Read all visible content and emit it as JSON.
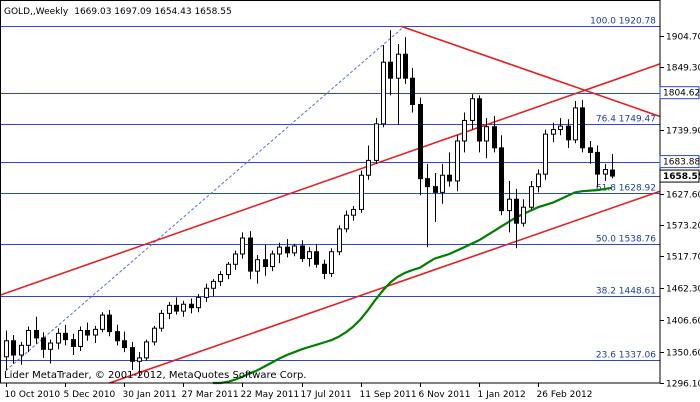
{
  "chart_data": {
    "type": "candlestick",
    "symbol": "GOLD,,Weekly",
    "ohlc_readout": "1669.03 1697.09 1654.43 1658.55",
    "footer": "Lider MetaTrader, © 2001-2012, MetaQuotes Software Corp.",
    "ylim": [
      1296,
      1960
    ],
    "y_ticks": [
      "1904.70",
      "1849.30",
      "1739.90",
      "1627.60",
      "1573.20",
      "1517.70",
      "1462.30",
      "1406.60",
      "1350.60",
      "1296.10"
    ],
    "x_ticks": [
      "10 Oct 2010",
      "5 Dec 2010",
      "30 Jan 2011",
      "27 Mar 2011",
      "22 May 2011",
      "17 Jul 2011",
      "11 Sep 2011",
      "6 Nov 2011",
      "1 Jan 2012",
      "26 Feb 2012"
    ],
    "price_boxes": [
      {
        "label": "1804.62",
        "value": 1804.62
      },
      {
        "label": "1683.88",
        "value": 1683.88
      },
      {
        "label": "1658.55",
        "value": 1658.55
      }
    ],
    "fib_levels": [
      {
        "label": "100.0 1920.78",
        "value": 1920.78
      },
      {
        "label": "76.4 1749.47",
        "value": 1749.47
      },
      {
        "label": "61.8 1628.92",
        "value": 1628.92
      },
      {
        "label": "50.0 1538.76",
        "value": 1538.76
      },
      {
        "label": "38.2 1448.61",
        "value": 1448.61
      },
      {
        "label": "23.6 1337.06",
        "value": 1337.06
      }
    ],
    "candles": [
      {
        "o": 1342,
        "h": 1388,
        "l": 1318,
        "c": 1370
      },
      {
        "o": 1370,
        "h": 1380,
        "l": 1330,
        "c": 1345
      },
      {
        "o": 1345,
        "h": 1368,
        "l": 1328,
        "c": 1362
      },
      {
        "o": 1362,
        "h": 1395,
        "l": 1350,
        "c": 1388
      },
      {
        "o": 1388,
        "h": 1412,
        "l": 1365,
        "c": 1375
      },
      {
        "o": 1375,
        "h": 1385,
        "l": 1340,
        "c": 1355
      },
      {
        "o": 1355,
        "h": 1372,
        "l": 1330,
        "c": 1366
      },
      {
        "o": 1366,
        "h": 1392,
        "l": 1355,
        "c": 1383
      },
      {
        "o": 1383,
        "h": 1398,
        "l": 1362,
        "c": 1372
      },
      {
        "o": 1372,
        "h": 1382,
        "l": 1345,
        "c": 1360
      },
      {
        "o": 1360,
        "h": 1395,
        "l": 1352,
        "c": 1388
      },
      {
        "o": 1388,
        "h": 1402,
        "l": 1370,
        "c": 1380
      },
      {
        "o": 1380,
        "h": 1396,
        "l": 1366,
        "c": 1390
      },
      {
        "o": 1390,
        "h": 1420,
        "l": 1385,
        "c": 1415
      },
      {
        "o": 1415,
        "h": 1424,
        "l": 1378,
        "c": 1386
      },
      {
        "o": 1386,
        "h": 1398,
        "l": 1362,
        "c": 1370
      },
      {
        "o": 1370,
        "h": 1386,
        "l": 1350,
        "c": 1358
      },
      {
        "o": 1358,
        "h": 1368,
        "l": 1319,
        "c": 1334
      },
      {
        "o": 1334,
        "h": 1350,
        "l": 1308,
        "c": 1340
      },
      {
        "o": 1340,
        "h": 1372,
        "l": 1335,
        "c": 1368
      },
      {
        "o": 1368,
        "h": 1396,
        "l": 1362,
        "c": 1392
      },
      {
        "o": 1392,
        "h": 1424,
        "l": 1386,
        "c": 1418
      },
      {
        "o": 1418,
        "h": 1438,
        "l": 1408,
        "c": 1432
      },
      {
        "o": 1432,
        "h": 1446,
        "l": 1416,
        "c": 1422
      },
      {
        "o": 1422,
        "h": 1440,
        "l": 1412,
        "c": 1434
      },
      {
        "o": 1434,
        "h": 1444,
        "l": 1418,
        "c": 1428
      },
      {
        "o": 1428,
        "h": 1452,
        "l": 1420,
        "c": 1446
      },
      {
        "o": 1446,
        "h": 1470,
        "l": 1438,
        "c": 1462
      },
      {
        "o": 1462,
        "h": 1478,
        "l": 1448,
        "c": 1474
      },
      {
        "o": 1474,
        "h": 1492,
        "l": 1466,
        "c": 1486
      },
      {
        "o": 1486,
        "h": 1508,
        "l": 1478,
        "c": 1504
      },
      {
        "o": 1504,
        "h": 1528,
        "l": 1494,
        "c": 1522
      },
      {
        "o": 1522,
        "h": 1560,
        "l": 1514,
        "c": 1550
      },
      {
        "o": 1550,
        "h": 1562,
        "l": 1478,
        "c": 1492
      },
      {
        "o": 1492,
        "h": 1520,
        "l": 1470,
        "c": 1512
      },
      {
        "o": 1512,
        "h": 1538,
        "l": 1484,
        "c": 1500
      },
      {
        "o": 1500,
        "h": 1528,
        "l": 1492,
        "c": 1522
      },
      {
        "o": 1522,
        "h": 1542,
        "l": 1506,
        "c": 1534
      },
      {
        "o": 1534,
        "h": 1548,
        "l": 1516,
        "c": 1524
      },
      {
        "o": 1524,
        "h": 1540,
        "l": 1518,
        "c": 1536
      },
      {
        "o": 1536,
        "h": 1546,
        "l": 1508,
        "c": 1514
      },
      {
        "o": 1514,
        "h": 1534,
        "l": 1500,
        "c": 1526
      },
      {
        "o": 1526,
        "h": 1540,
        "l": 1498,
        "c": 1504
      },
      {
        "o": 1504,
        "h": 1512,
        "l": 1478,
        "c": 1488
      },
      {
        "o": 1488,
        "h": 1532,
        "l": 1482,
        "c": 1526
      },
      {
        "o": 1526,
        "h": 1572,
        "l": 1520,
        "c": 1566
      },
      {
        "o": 1566,
        "h": 1598,
        "l": 1560,
        "c": 1590
      },
      {
        "o": 1590,
        "h": 1606,
        "l": 1580,
        "c": 1600
      },
      {
        "o": 1600,
        "h": 1668,
        "l": 1594,
        "c": 1660
      },
      {
        "o": 1660,
        "h": 1712,
        "l": 1652,
        "c": 1686
      },
      {
        "o": 1686,
        "h": 1760,
        "l": 1680,
        "c": 1750
      },
      {
        "o": 1750,
        "h": 1888,
        "l": 1744,
        "c": 1858
      },
      {
        "o": 1858,
        "h": 1914,
        "l": 1800,
        "c": 1830
      },
      {
        "o": 1830,
        "h": 1890,
        "l": 1748,
        "c": 1872
      },
      {
        "o": 1872,
        "h": 1902,
        "l": 1820,
        "c": 1830
      },
      {
        "o": 1830,
        "h": 1848,
        "l": 1770,
        "c": 1784
      },
      {
        "o": 1784,
        "h": 1796,
        "l": 1625,
        "c": 1654
      },
      {
        "o": 1654,
        "h": 1680,
        "l": 1534,
        "c": 1640
      },
      {
        "o": 1640,
        "h": 1664,
        "l": 1578,
        "c": 1630
      },
      {
        "o": 1630,
        "h": 1680,
        "l": 1610,
        "c": 1660
      },
      {
        "o": 1660,
        "h": 1700,
        "l": 1640,
        "c": 1650
      },
      {
        "o": 1650,
        "h": 1730,
        "l": 1632,
        "c": 1720
      },
      {
        "o": 1720,
        "h": 1770,
        "l": 1700,
        "c": 1756
      },
      {
        "o": 1756,
        "h": 1802,
        "l": 1740,
        "c": 1794
      },
      {
        "o": 1794,
        "h": 1800,
        "l": 1700,
        "c": 1720
      },
      {
        "o": 1720,
        "h": 1760,
        "l": 1690,
        "c": 1745
      },
      {
        "o": 1745,
        "h": 1764,
        "l": 1700,
        "c": 1708
      },
      {
        "o": 1708,
        "h": 1730,
        "l": 1590,
        "c": 1598
      },
      {
        "o": 1598,
        "h": 1650,
        "l": 1560,
        "c": 1618
      },
      {
        "o": 1618,
        "h": 1636,
        "l": 1532,
        "c": 1576
      },
      {
        "o": 1576,
        "h": 1618,
        "l": 1570,
        "c": 1604
      },
      {
        "o": 1604,
        "h": 1650,
        "l": 1600,
        "c": 1640
      },
      {
        "o": 1640,
        "h": 1670,
        "l": 1630,
        "c": 1662
      },
      {
        "o": 1662,
        "h": 1740,
        "l": 1652,
        "c": 1732
      },
      {
        "o": 1732,
        "h": 1752,
        "l": 1718,
        "c": 1740
      },
      {
        "o": 1740,
        "h": 1760,
        "l": 1730,
        "c": 1746
      },
      {
        "o": 1746,
        "h": 1758,
        "l": 1708,
        "c": 1722
      },
      {
        "o": 1722,
        "h": 1790,
        "l": 1716,
        "c": 1778
      },
      {
        "o": 1778,
        "h": 1792,
        "l": 1700,
        "c": 1708
      },
      {
        "o": 1708,
        "h": 1720,
        "l": 1680,
        "c": 1700
      },
      {
        "o": 1700,
        "h": 1712,
        "l": 1640,
        "c": 1662
      },
      {
        "o": 1662,
        "h": 1680,
        "l": 1650,
        "c": 1670
      },
      {
        "o": 1669.03,
        "h": 1697.09,
        "l": 1654.43,
        "c": 1658.55
      }
    ],
    "moving_average": [
      1296,
      1296,
      1298,
      1302,
      1307,
      1313,
      1318,
      1325,
      1332,
      1339,
      1345,
      1350,
      1355,
      1359,
      1363,
      1367,
      1371,
      1377,
      1385,
      1395,
      1408,
      1424,
      1442,
      1458,
      1472,
      1482,
      1489,
      1494,
      1498,
      1506,
      1514,
      1518,
      1522,
      1528,
      1534,
      1540,
      1546,
      1554,
      1562,
      1570,
      1578,
      1586,
      1592,
      1598,
      1604,
      1608,
      1612,
      1618,
      1624,
      1630,
      1632,
      1633,
      1634,
      1636,
      1638
    ],
    "colors": {
      "bull": "#ffffff",
      "bear": "#000000",
      "candle_outline": "#000000",
      "trendline": "#e41f1f",
      "moving_average": "#007f00",
      "fib_line": "#2c4ac9",
      "fib_text": "#1c3f9e",
      "fib_dashed": "#5a70d8",
      "grid": "#ffffff",
      "axis": "#000000"
    }
  }
}
